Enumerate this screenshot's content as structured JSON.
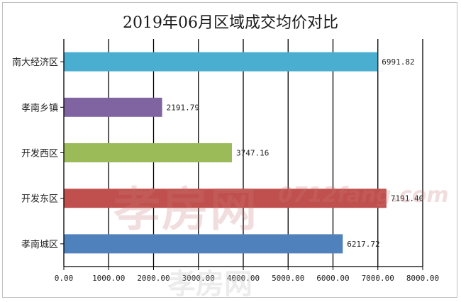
{
  "chart_data": {
    "type": "bar",
    "orientation": "horizontal",
    "title": "2019年06月区域成交均价对比",
    "categories": [
      "南大经济区",
      "孝南乡镇",
      "开发西区",
      "开发东区",
      "孝南城区"
    ],
    "values": [
      6991.82,
      2191.79,
      3747.16,
      7191.4,
      6217.72
    ],
    "value_labels": [
      "6991.82",
      "2191.79",
      "3747.16",
      "7191.40",
      "6217.72"
    ],
    "colors": [
      "#4aaed0",
      "#8064a2",
      "#9bbb59",
      "#c0504d",
      "#4f81bd"
    ],
    "xlim": [
      0,
      8000
    ],
    "x_ticks": [
      "0.00",
      "1000.00",
      "2000.00",
      "3000.00",
      "4000.00",
      "5000.00",
      "6000.00",
      "7000.00",
      "8000.00"
    ],
    "grid": true,
    "legend": "none"
  },
  "watermark": {
    "main": "孝房网",
    "sub": "0712fang.com",
    "bottom": "孝房网"
  }
}
